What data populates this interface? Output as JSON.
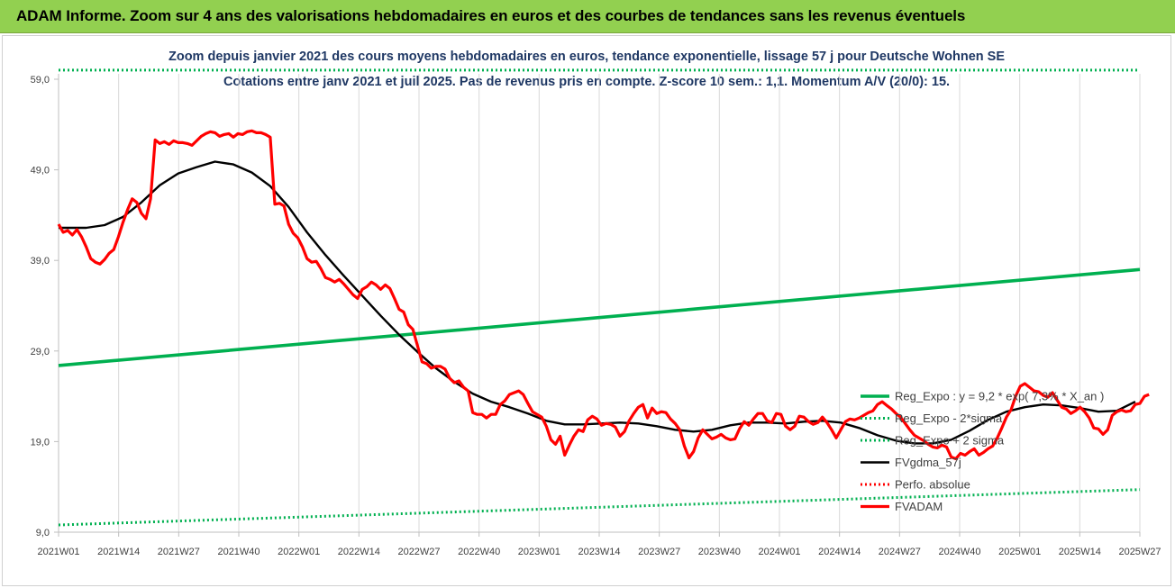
{
  "banner": {
    "title": "ADAM Informe. Zoom sur 4 ans des valorisations hebdomadaires en euros et des courbes de tendances sans les revenus éventuels"
  },
  "chart_data": {
    "type": "line",
    "title": "Zoom depuis janvier 2021 des cours moyens hebdomadaires en euros, tendance exponentielle, lissage 57 j pour Deutsche Wohnen SE",
    "subtitle": "Cotations entre janv 2021 et juil 2025. Pas de revenus pris en compte. Z-score 10 sem.: 1,1. Momentum A/V (20/0): 15.",
    "x_ticks": [
      "2021W01",
      "2021W14",
      "2021W27",
      "2021W40",
      "2022W01",
      "2022W14",
      "2022W27",
      "2022W40",
      "2023W01",
      "2023W14",
      "2023W27",
      "2023W40",
      "2024W01",
      "2024W14",
      "2024W27",
      "2024W40",
      "2025W01",
      "2025W14",
      "2025W27"
    ],
    "x_range": [
      0,
      235
    ],
    "y_ticks": [
      "9,0",
      "19,0",
      "29,0",
      "39,0",
      "49,0",
      "59,0"
    ],
    "ylim": [
      9,
      59
    ],
    "grid": "vertical",
    "legend_position": "right",
    "series": [
      {
        "name": "Reg_Expo : y = 9,2 * exp( 7,3% * X_an )",
        "color": "#00b050",
        "style": "solid",
        "values": [
          [
            0,
            27.4
          ],
          [
            235,
            38.0
          ]
        ]
      },
      {
        "name": "Reg_Expo - 2*sigma",
        "color": "#00b050",
        "style": "dotted",
        "values": [
          [
            0,
            9.8
          ],
          [
            235,
            13.7
          ]
        ]
      },
      {
        "name": "Reg_Expo + 2 sigma",
        "color": "#00b050",
        "style": "dotted",
        "values": [
          [
            0,
            60.0
          ],
          [
            235,
            60.0
          ]
        ]
      },
      {
        "name": "FVgdma_57j",
        "color": "#000000",
        "style": "solid",
        "values": [
          [
            0,
            42.6
          ],
          [
            6,
            42.6
          ],
          [
            10,
            42.9
          ],
          [
            14,
            43.8
          ],
          [
            18,
            45.4
          ],
          [
            22,
            47.3
          ],
          [
            26,
            48.6
          ],
          [
            30,
            49.3
          ],
          [
            34,
            49.9
          ],
          [
            38,
            49.6
          ],
          [
            42,
            48.7
          ],
          [
            46,
            47.2
          ],
          [
            50,
            44.9
          ],
          [
            54,
            42.1
          ],
          [
            58,
            39.6
          ],
          [
            62,
            37.3
          ],
          [
            66,
            35.1
          ],
          [
            70,
            32.9
          ],
          [
            74,
            30.8
          ],
          [
            78,
            28.9
          ],
          [
            82,
            27.1
          ],
          [
            86,
            25.6
          ],
          [
            90,
            24.3
          ],
          [
            94,
            23.4
          ],
          [
            98,
            22.8
          ],
          [
            102,
            22.1
          ],
          [
            106,
            21.3
          ],
          [
            110,
            20.9
          ],
          [
            114,
            20.9
          ],
          [
            118,
            21.0
          ],
          [
            122,
            21.1
          ],
          [
            126,
            21.0
          ],
          [
            130,
            20.7
          ],
          [
            134,
            20.3
          ],
          [
            138,
            20.1
          ],
          [
            142,
            20.3
          ],
          [
            146,
            20.8
          ],
          [
            150,
            21.1
          ],
          [
            154,
            21.1
          ],
          [
            158,
            21.0
          ],
          [
            162,
            21.2
          ],
          [
            166,
            21.3
          ],
          [
            170,
            21.1
          ],
          [
            174,
            20.5
          ],
          [
            178,
            19.7
          ],
          [
            182,
            19.1
          ],
          [
            186,
            18.8
          ],
          [
            190,
            18.8
          ],
          [
            194,
            19.2
          ],
          [
            198,
            20.2
          ],
          [
            202,
            21.4
          ],
          [
            206,
            22.3
          ],
          [
            210,
            22.8
          ],
          [
            214,
            23.1
          ],
          [
            218,
            23.0
          ],
          [
            222,
            22.7
          ],
          [
            226,
            22.3
          ],
          [
            230,
            22.4
          ],
          [
            234,
            23.4
          ]
        ]
      },
      {
        "name": "Perfo. absolue",
        "color": "#ff0000",
        "style": "dotted",
        "values": []
      },
      {
        "name": "FVADAM",
        "color": "#ff0000",
        "style": "solid",
        "values": [
          [
            0,
            43.0
          ],
          [
            1,
            42.1
          ],
          [
            2,
            42.3
          ],
          [
            3,
            41.8
          ],
          [
            4,
            42.4
          ],
          [
            5,
            41.6
          ],
          [
            6,
            40.5
          ],
          [
            7,
            39.2
          ],
          [
            8,
            38.8
          ],
          [
            9,
            38.6
          ],
          [
            10,
            39.1
          ],
          [
            11,
            39.8
          ],
          [
            12,
            40.2
          ],
          [
            13,
            41.6
          ],
          [
            14,
            43.2
          ],
          [
            15,
            44.6
          ],
          [
            16,
            45.8
          ],
          [
            17,
            45.4
          ],
          [
            18,
            44.2
          ],
          [
            19,
            43.6
          ],
          [
            20,
            45.8
          ],
          [
            21,
            52.3
          ],
          [
            22,
            51.9
          ],
          [
            23,
            52.1
          ],
          [
            24,
            51.8
          ],
          [
            25,
            52.2
          ],
          [
            26,
            52.0
          ],
          [
            27,
            52.0
          ],
          [
            28,
            51.9
          ],
          [
            29,
            51.7
          ],
          [
            30,
            52.2
          ],
          [
            31,
            52.7
          ],
          [
            32,
            53.0
          ],
          [
            33,
            53.2
          ],
          [
            34,
            53.1
          ],
          [
            35,
            52.7
          ],
          [
            36,
            52.9
          ],
          [
            37,
            53.0
          ],
          [
            38,
            52.6
          ],
          [
            39,
            53.0
          ],
          [
            40,
            52.9
          ],
          [
            41,
            53.2
          ],
          [
            42,
            53.3
          ],
          [
            43,
            53.1
          ],
          [
            44,
            53.1
          ],
          [
            45,
            52.9
          ],
          [
            46,
            52.6
          ],
          [
            47,
            45.2
          ],
          [
            48,
            45.3
          ],
          [
            49,
            45.0
          ],
          [
            50,
            43.0
          ],
          [
            51,
            42.0
          ],
          [
            52,
            41.5
          ],
          [
            53,
            40.5
          ],
          [
            54,
            39.2
          ],
          [
            55,
            38.8
          ],
          [
            56,
            38.9
          ],
          [
            57,
            38.1
          ],
          [
            58,
            37.1
          ],
          [
            59,
            36.9
          ],
          [
            60,
            36.6
          ],
          [
            61,
            36.9
          ],
          [
            62,
            36.4
          ],
          [
            63,
            35.8
          ],
          [
            64,
            35.2
          ],
          [
            65,
            34.8
          ],
          [
            66,
            35.8
          ],
          [
            67,
            36.1
          ],
          [
            68,
            36.6
          ],
          [
            69,
            36.3
          ],
          [
            70,
            35.8
          ],
          [
            71,
            36.3
          ],
          [
            72,
            35.9
          ],
          [
            73,
            34.8
          ],
          [
            74,
            33.6
          ],
          [
            75,
            33.3
          ],
          [
            76,
            31.9
          ],
          [
            77,
            31.4
          ],
          [
            78,
            29.6
          ],
          [
            79,
            27.8
          ],
          [
            80,
            27.6
          ],
          [
            81,
            27.1
          ],
          [
            82,
            27.3
          ],
          [
            83,
            27.3
          ],
          [
            84,
            27.0
          ],
          [
            85,
            26.0
          ],
          [
            86,
            25.5
          ],
          [
            87,
            25.7
          ],
          [
            88,
            25.0
          ],
          [
            89,
            24.6
          ],
          [
            90,
            22.2
          ],
          [
            91,
            22.0
          ],
          [
            92,
            22.0
          ],
          [
            93,
            21.6
          ],
          [
            94,
            22.0
          ],
          [
            95,
            22.0
          ],
          [
            96,
            23.1
          ],
          [
            97,
            23.5
          ],
          [
            98,
            24.2
          ],
          [
            99,
            24.4
          ],
          [
            100,
            24.6
          ],
          [
            101,
            24.2
          ],
          [
            102,
            23.2
          ],
          [
            103,
            22.3
          ],
          [
            104,
            22.0
          ],
          [
            105,
            21.7
          ],
          [
            106,
            20.7
          ],
          [
            107,
            19.2
          ],
          [
            108,
            18.7
          ],
          [
            109,
            19.6
          ],
          [
            110,
            17.5
          ],
          [
            111,
            18.6
          ],
          [
            112,
            19.6
          ],
          [
            113,
            20.3
          ],
          [
            114,
            20.1
          ],
          [
            115,
            21.4
          ],
          [
            116,
            21.8
          ],
          [
            117,
            21.5
          ],
          [
            118,
            20.8
          ],
          [
            119,
            21.0
          ],
          [
            120,
            20.9
          ],
          [
            121,
            20.6
          ],
          [
            122,
            19.6
          ],
          [
            123,
            20.1
          ],
          [
            124,
            21.3
          ],
          [
            125,
            22.1
          ],
          [
            126,
            22.8
          ],
          [
            127,
            23.1
          ],
          [
            128,
            21.6
          ],
          [
            129,
            22.7
          ],
          [
            130,
            22.1
          ],
          [
            131,
            22.3
          ],
          [
            132,
            22.2
          ],
          [
            133,
            21.5
          ],
          [
            134,
            21.0
          ],
          [
            135,
            20.3
          ],
          [
            136,
            18.5
          ],
          [
            137,
            17.2
          ],
          [
            138,
            17.9
          ],
          [
            139,
            19.4
          ],
          [
            140,
            20.3
          ],
          [
            141,
            19.8
          ],
          [
            142,
            19.3
          ],
          [
            143,
            19.5
          ],
          [
            144,
            19.8
          ],
          [
            145,
            19.4
          ],
          [
            146,
            19.2
          ],
          [
            147,
            19.3
          ],
          [
            148,
            20.4
          ],
          [
            149,
            21.2
          ],
          [
            150,
            20.8
          ],
          [
            151,
            21.5
          ],
          [
            152,
            22.1
          ],
          [
            153,
            22.1
          ],
          [
            154,
            21.3
          ],
          [
            155,
            21.1
          ],
          [
            156,
            22.1
          ],
          [
            157,
            22.0
          ],
          [
            158,
            20.7
          ],
          [
            159,
            20.3
          ],
          [
            160,
            20.7
          ],
          [
            161,
            21.8
          ],
          [
            162,
            21.7
          ],
          [
            163,
            21.2
          ],
          [
            164,
            20.9
          ],
          [
            165,
            21.1
          ],
          [
            166,
            21.7
          ],
          [
            167,
            21.1
          ],
          [
            168,
            20.3
          ],
          [
            169,
            19.4
          ],
          [
            170,
            20.3
          ],
          [
            171,
            21.2
          ],
          [
            172,
            21.5
          ],
          [
            173,
            21.4
          ],
          [
            174,
            21.6
          ],
          [
            175,
            21.9
          ],
          [
            176,
            22.2
          ],
          [
            177,
            22.4
          ],
          [
            178,
            23.1
          ],
          [
            179,
            23.4
          ],
          [
            180,
            23.0
          ],
          [
            181,
            22.6
          ],
          [
            182,
            22.1
          ],
          [
            183,
            21.7
          ],
          [
            184,
            21.0
          ],
          [
            185,
            20.3
          ],
          [
            186,
            19.7
          ],
          [
            187,
            19.4
          ],
          [
            188,
            19.1
          ],
          [
            189,
            18.7
          ],
          [
            190,
            18.4
          ],
          [
            191,
            18.3
          ],
          [
            192,
            18.6
          ],
          [
            193,
            18.4
          ],
          [
            194,
            17.3
          ],
          [
            195,
            17.1
          ],
          [
            196,
            17.7
          ],
          [
            197,
            17.5
          ],
          [
            198,
            17.9
          ],
          [
            199,
            18.2
          ],
          [
            200,
            17.5
          ],
          [
            201,
            17.8
          ],
          [
            202,
            18.2
          ],
          [
            203,
            18.5
          ],
          [
            204,
            19.4
          ],
          [
            205,
            20.5
          ],
          [
            206,
            21.7
          ],
          [
            207,
            22.5
          ],
          [
            208,
            24.0
          ],
          [
            209,
            25.1
          ],
          [
            210,
            25.4
          ],
          [
            211,
            25.0
          ],
          [
            212,
            24.6
          ],
          [
            213,
            24.5
          ],
          [
            214,
            24.1
          ],
          [
            215,
            23.9
          ],
          [
            216,
            24.4
          ],
          [
            217,
            23.6
          ],
          [
            218,
            22.8
          ],
          [
            219,
            22.6
          ],
          [
            220,
            22.1
          ],
          [
            221,
            22.4
          ],
          [
            222,
            22.8
          ],
          [
            223,
            22.3
          ],
          [
            224,
            21.6
          ],
          [
            225,
            20.5
          ],
          [
            226,
            20.4
          ],
          [
            227,
            19.8
          ],
          [
            228,
            20.3
          ],
          [
            229,
            21.9
          ],
          [
            230,
            22.3
          ],
          [
            231,
            22.5
          ],
          [
            232,
            22.3
          ],
          [
            233,
            22.4
          ],
          [
            234,
            23.1
          ],
          [
            235,
            23.2
          ],
          [
            236,
            24.0
          ],
          [
            237,
            24.2
          ]
        ]
      }
    ]
  }
}
